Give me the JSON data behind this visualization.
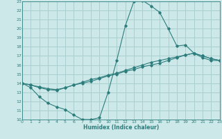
{
  "xlabel": "Humidex (Indice chaleur)",
  "bg_color": "#cce8e8",
  "grid_color": "#aacfcf",
  "line_color": "#2d7d7d",
  "xmin": 0,
  "xmax": 23,
  "ymin": 10,
  "ymax": 23,
  "line1_x": [
    0,
    1,
    2,
    3,
    4,
    5,
    6,
    7,
    8,
    9,
    10,
    11,
    12,
    13,
    14,
    15,
    16,
    17,
    18,
    19,
    20,
    21,
    22,
    23
  ],
  "line1_y": [
    14.0,
    13.5,
    12.5,
    11.8,
    11.4,
    11.1,
    10.5,
    10.0,
    10.0,
    10.2,
    13.0,
    16.5,
    20.3,
    23.0,
    23.1,
    22.5,
    21.8,
    20.0,
    18.1,
    18.2,
    17.3,
    16.8,
    16.5,
    16.5
  ],
  "line2_x": [
    0,
    1,
    2,
    3,
    4,
    5,
    6,
    7,
    8,
    9,
    10,
    11,
    12,
    13,
    14,
    15,
    16,
    17,
    18,
    19,
    20,
    21,
    22,
    23
  ],
  "line2_y": [
    14.0,
    13.8,
    13.5,
    13.3,
    13.2,
    13.5,
    13.8,
    14.0,
    14.2,
    14.5,
    14.8,
    15.0,
    15.3,
    15.5,
    15.8,
    16.0,
    16.2,
    16.5,
    16.8,
    17.1,
    17.3,
    17.0,
    16.7,
    16.5
  ],
  "line3_x": [
    0,
    1,
    2,
    3,
    4,
    5,
    6,
    7,
    8,
    9,
    10,
    11,
    12,
    13,
    14,
    15,
    16,
    17,
    18,
    19,
    20,
    21,
    22,
    23
  ],
  "line3_y": [
    14.0,
    13.8,
    13.6,
    13.4,
    13.3,
    13.5,
    13.8,
    14.1,
    14.4,
    14.6,
    14.9,
    15.1,
    15.4,
    15.7,
    16.0,
    16.3,
    16.5,
    16.7,
    16.9,
    17.1,
    17.3,
    17.0,
    16.7,
    16.5
  ]
}
